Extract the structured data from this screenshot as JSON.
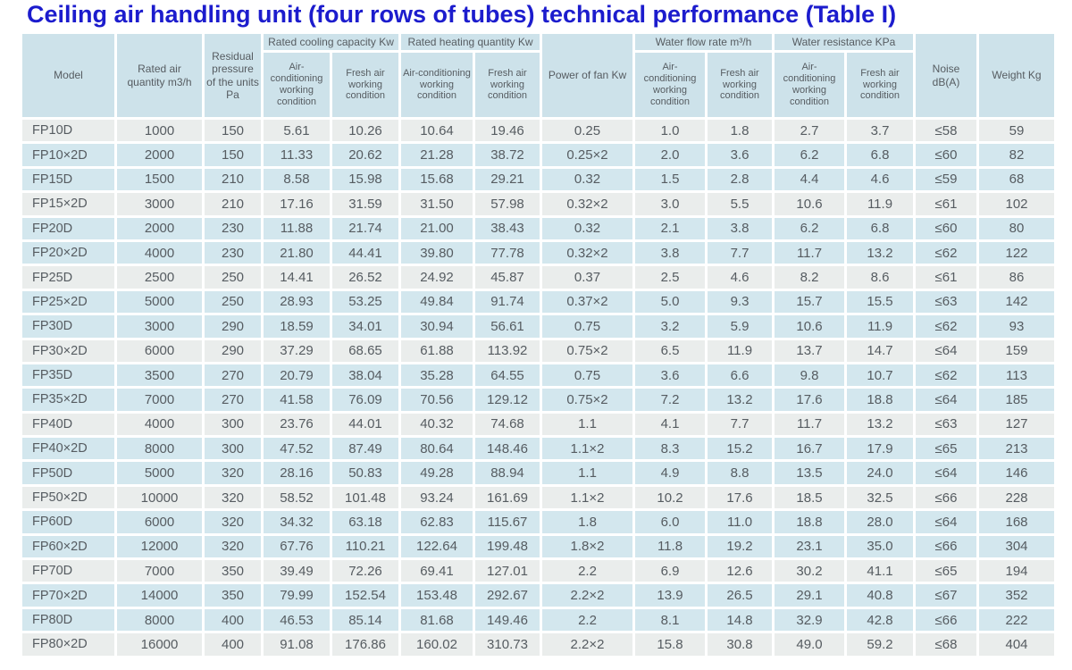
{
  "title": "Ceiling air handling unit (four rows of tubes) technical performance (Table I)",
  "header": {
    "model": "Model",
    "rated_air_quantity": "Rated air quantity m3/h",
    "residual_pressure": "Residual pressure of the units Pa",
    "cooling_group": "Rated cooling capacity Kw",
    "heating_group": "Rated heating quantity Kw",
    "power_of_fan": "Power of fan Kw",
    "water_flow_group": "Water flow rate m³/h",
    "water_resistance_group": "Water resistance KPa",
    "aircon_condition": "Air-conditioning working condition",
    "fresh_air_condition": "Fresh air working condition",
    "noise": "Noise dB(A)",
    "weight": "Weight Kg"
  },
  "table": {
    "column_ids": [
      "model",
      "rated-air-quantity",
      "residual-pressure",
      "cooling-aircon",
      "cooling-fresh-air",
      "heating-aircon",
      "heating-fresh-air",
      "power-of-fan",
      "water-flow-aircon",
      "water-flow-fresh-air",
      "water-resistance-aircon",
      "water-resistance-fresh-air",
      "noise",
      "weight"
    ],
    "rows": [
      [
        "FP10D",
        "1000",
        "150",
        "5.61",
        "10.26",
        "10.64",
        "19.46",
        "0.25",
        "1.0",
        "1.8",
        "2.7",
        "3.7",
        "≤58",
        "59"
      ],
      [
        "FP10×2D",
        "2000",
        "150",
        "11.33",
        "20.62",
        "21.28",
        "38.72",
        "0.25×2",
        "2.0",
        "3.6",
        "6.2",
        "6.8",
        "≤60",
        "82"
      ],
      [
        "FP15D",
        "1500",
        "210",
        "8.58",
        "15.98",
        "15.68",
        "29.21",
        "0.32",
        "1.5",
        "2.8",
        "4.4",
        "4.6",
        "≤59",
        "68"
      ],
      [
        "FP15×2D",
        "3000",
        "210",
        "17.16",
        "31.59",
        "31.50",
        "57.98",
        "0.32×2",
        "3.0",
        "5.5",
        "10.6",
        "11.9",
        "≤61",
        "102"
      ],
      [
        "FP20D",
        "2000",
        "230",
        "11.88",
        "21.74",
        "21.00",
        "38.43",
        "0.32",
        "2.1",
        "3.8",
        "6.2",
        "6.8",
        "≤60",
        "80"
      ],
      [
        "FP20×2D",
        "4000",
        "230",
        "21.80",
        "44.41",
        "39.80",
        "77.78",
        "0.32×2",
        "3.8",
        "7.7",
        "11.7",
        "13.2",
        "≤62",
        "122"
      ],
      [
        "FP25D",
        "2500",
        "250",
        "14.41",
        "26.52",
        "24.92",
        "45.87",
        "0.37",
        "2.5",
        "4.6",
        "8.2",
        "8.6",
        "≤61",
        "86"
      ],
      [
        "FP25×2D",
        "5000",
        "250",
        "28.93",
        "53.25",
        "49.84",
        "91.74",
        "0.37×2",
        "5.0",
        "9.3",
        "15.7",
        "15.5",
        "≤63",
        "142"
      ],
      [
        "FP30D",
        "3000",
        "290",
        "18.59",
        "34.01",
        "30.94",
        "56.61",
        "0.75",
        "3.2",
        "5.9",
        "10.6",
        "11.9",
        "≤62",
        "93"
      ],
      [
        "FP30×2D",
        "6000",
        "290",
        "37.29",
        "68.65",
        "61.88",
        "113.92",
        "0.75×2",
        "6.5",
        "11.9",
        "13.7",
        "14.7",
        "≤64",
        "159"
      ],
      [
        "FP35D",
        "3500",
        "270",
        "20.79",
        "38.04",
        "35.28",
        "64.55",
        "0.75",
        "3.6",
        "6.6",
        "9.8",
        "10.7",
        "≤62",
        "113"
      ],
      [
        "FP35×2D",
        "7000",
        "270",
        "41.58",
        "76.09",
        "70.56",
        "129.12",
        "0.75×2",
        "7.2",
        "13.2",
        "17.6",
        "18.8",
        "≤64",
        "185"
      ],
      [
        "FP40D",
        "4000",
        "300",
        "23.76",
        "44.01",
        "40.32",
        "74.68",
        "1.1",
        "4.1",
        "7.7",
        "11.7",
        "13.2",
        "≤63",
        "127"
      ],
      [
        "FP40×2D",
        "8000",
        "300",
        "47.52",
        "87.49",
        "80.64",
        "148.46",
        "1.1×2",
        "8.3",
        "15.2",
        "16.7",
        "17.9",
        "≤65",
        "213"
      ],
      [
        "FP50D",
        "5000",
        "320",
        "28.16",
        "50.83",
        "49.28",
        "88.94",
        "1.1",
        "4.9",
        "8.8",
        "13.5",
        "24.0",
        "≤64",
        "146"
      ],
      [
        "FP50×2D",
        "10000",
        "320",
        "58.52",
        "101.48",
        "93.24",
        "161.69",
        "1.1×2",
        "10.2",
        "17.6",
        "18.5",
        "32.5",
        "≤66",
        "228"
      ],
      [
        "FP60D",
        "6000",
        "320",
        "34.32",
        "63.18",
        "62.83",
        "115.67",
        "1.8",
        "6.0",
        "11.0",
        "18.8",
        "28.0",
        "≤64",
        "168"
      ],
      [
        "FP60×2D",
        "12000",
        "320",
        "67.76",
        "110.21",
        "122.64",
        "199.48",
        "1.8×2",
        "11.8",
        "19.2",
        "23.1",
        "35.0",
        "≤66",
        "304"
      ],
      [
        "FP70D",
        "7000",
        "350",
        "39.49",
        "72.26",
        "69.41",
        "127.01",
        "2.2",
        "6.9",
        "12.6",
        "30.2",
        "41.1",
        "≤65",
        "194"
      ],
      [
        "FP70×2D",
        "14000",
        "350",
        "79.99",
        "152.54",
        "153.48",
        "292.67",
        "2.2×2",
        "13.9",
        "26.5",
        "29.1",
        "40.8",
        "≤67",
        "352"
      ],
      [
        "FP80D",
        "8000",
        "400",
        "46.53",
        "85.14",
        "81.68",
        "149.46",
        "2.2",
        "8.1",
        "14.8",
        "32.9",
        "42.8",
        "≤66",
        "222"
      ],
      [
        "FP80×2D",
        "16000",
        "400",
        "91.08",
        "176.86",
        "160.02",
        "310.73",
        "2.2×2",
        "15.8",
        "30.8",
        "49.0",
        "59.2",
        "≤68",
        "404"
      ]
    ]
  },
  "colors": {
    "title_blue": "#1c1ccd",
    "header_bg": "#cde2ea",
    "row_blue_bg": "#d3e7ee",
    "row_gray_bg": "#eaedec",
    "cell_text": "#565c61"
  }
}
